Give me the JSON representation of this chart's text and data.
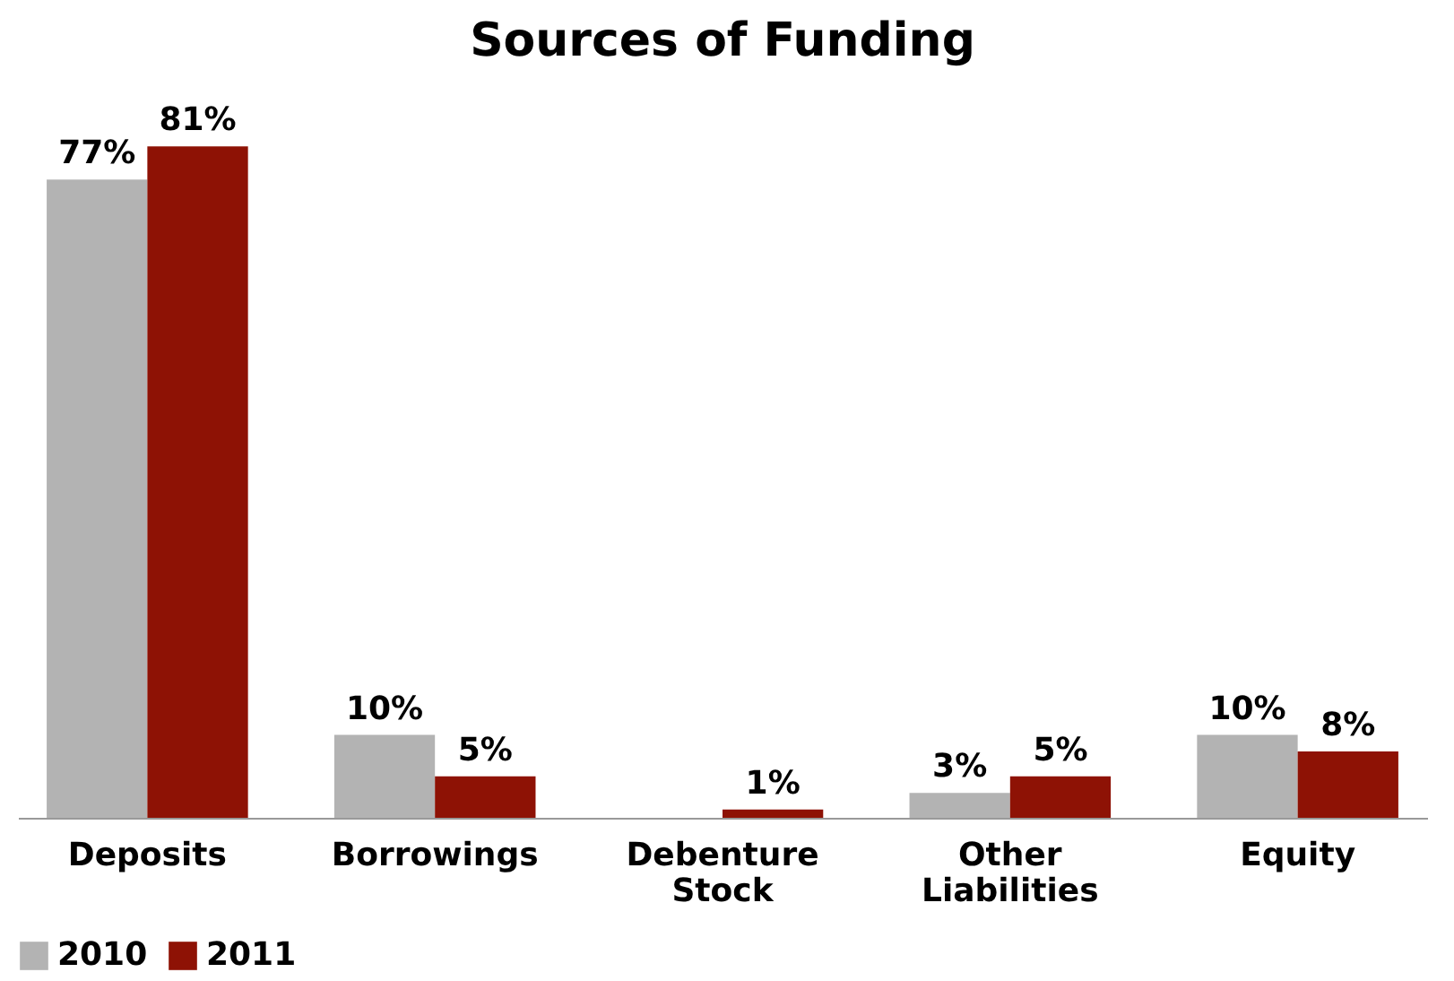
{
  "chart_data": {
    "type": "bar",
    "title": "Sources of Funding",
    "categories": [
      "Deposits",
      "Borrowings",
      "Debenture Stock",
      "Other Liabilities",
      "Equity"
    ],
    "series": [
      {
        "name": "2010",
        "color": "#b3b3b3",
        "values": [
          77,
          10,
          null,
          3,
          10
        ],
        "value_labels": [
          "77%",
          "10%",
          null,
          "3%",
          "10%"
        ]
      },
      {
        "name": "2011",
        "color": "#8e1205",
        "values": [
          81,
          5,
          1,
          5,
          8
        ],
        "value_labels": [
          "81%",
          "5%",
          "1%",
          "5%",
          "8%"
        ]
      }
    ],
    "tick_labels": "x",
    "legend": "bottom"
  }
}
